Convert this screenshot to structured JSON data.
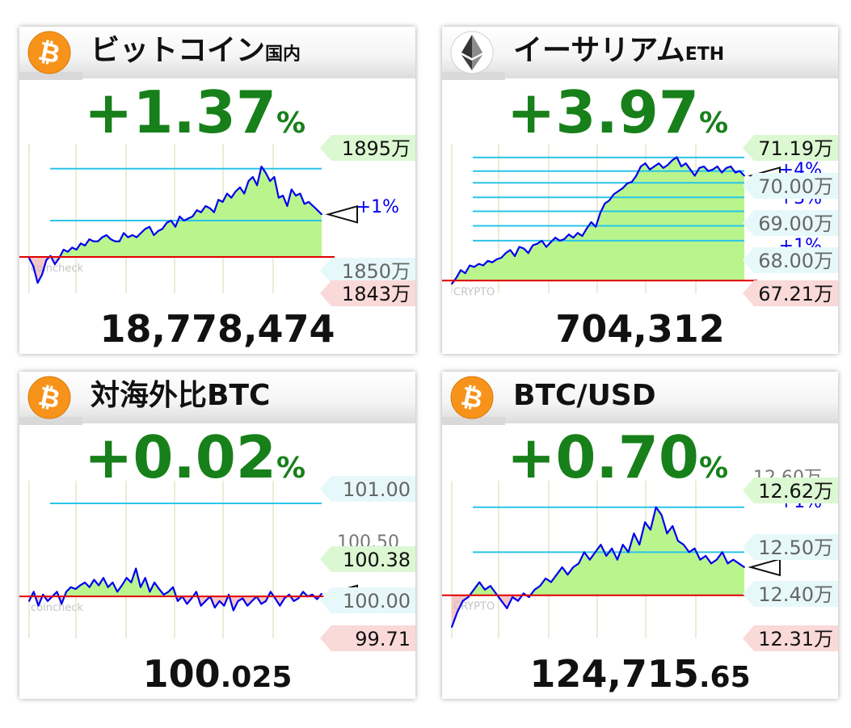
{
  "colors": {
    "up": "#17801a",
    "line": "#0000ee",
    "fill_above": "#b9f58c",
    "fill_below": "#f7c6c6",
    "hline": "#29c5e8",
    "baseline": "#e00000",
    "label_green": "#dcf8d2",
    "label_pink": "#fad9d9",
    "label_blue": "#e6f8fa"
  },
  "panels": [
    {
      "title": "ビットコイン",
      "title_suffix": "国内",
      "icon": "bitcoin-icon",
      "change": "+1.37",
      "unit": "%",
      "price_main": "18,778,474",
      "price_decimal": "",
      "watermark": "coincheck",
      "labels": {
        "high": "1895万",
        "low": "1843万",
        "levels": [
          "1850万"
        ],
        "partial": [
          "+1%"
        ]
      }
    },
    {
      "title": "イーサリアム",
      "title_suffix": "ETH",
      "icon": "ethereum-icon",
      "change": "+3.97",
      "unit": "%",
      "price_main": "704,312",
      "price_decimal": "",
      "watermark": "CRYPTO",
      "labels": {
        "high": "71.19万",
        "low": "67.21万",
        "levels": [
          "70.00万",
          "69.00万",
          "68.00万"
        ],
        "partial": [
          "+4%",
          "+3%",
          "+1%"
        ]
      }
    },
    {
      "title": "対海外比BTC",
      "title_suffix": "",
      "icon": "bitcoin-icon",
      "change": "+0.02",
      "unit": "%",
      "price_main": "100",
      "price_decimal": ".025",
      "watermark": "coincheck",
      "labels": {
        "high": "100.38",
        "low": "99.71",
        "levels": [
          "101.00",
          "100.00"
        ],
        "partial": [
          "100.50"
        ]
      }
    },
    {
      "title": "BTC/USD",
      "title_suffix": "",
      "icon": "bitcoin-icon",
      "change": "+0.70",
      "unit": "%",
      "price_main": "124,715",
      "price_decimal": ".65",
      "watermark": "CRYPTO",
      "labels": {
        "high": "12.62万",
        "low": "12.31万",
        "levels": [
          "12.50万",
          "12.40万"
        ],
        "partial": [
          "12.60万",
          "+1%"
        ]
      }
    }
  ],
  "chart_data": [
    {
      "type": "line",
      "title": "ビットコイン国内",
      "ylim": [
        1835,
        1905
      ],
      "baseline": 1852.5,
      "hlines": [
        1895,
        1870
      ],
      "y": [
        1852,
        1848,
        1840,
        1844,
        1851,
        1853,
        1849,
        1852,
        1856,
        1855,
        1857,
        1856,
        1859,
        1858,
        1861,
        1860,
        1860,
        1862,
        1863,
        1861,
        1860,
        1860,
        1864,
        1862,
        1863,
        1862,
        1864,
        1866,
        1867,
        1863,
        1865,
        1866,
        1869,
        1870,
        1867,
        1872,
        1870,
        1871,
        1872,
        1875,
        1874,
        1877,
        1876,
        1874,
        1880,
        1879,
        1883,
        1881,
        1884,
        1886,
        1883,
        1889,
        1891,
        1887,
        1896,
        1893,
        1889,
        1891,
        1881,
        1882,
        1877,
        1885,
        1882,
        1883,
        1878,
        1879,
        1877,
        1875,
        1873
      ]
    },
    {
      "type": "line",
      "title": "イーサリアムETH",
      "ylim": [
        66.8,
        71.5
      ],
      "baseline": 67.21,
      "hlines": [
        71.19,
        70.75,
        70.37,
        69.9,
        69.45,
        68.98,
        68.5
      ],
      "y": [
        67.1,
        67.3,
        67.55,
        67.45,
        67.7,
        67.65,
        67.75,
        67.7,
        67.85,
        67.8,
        67.9,
        67.95,
        68.1,
        68.2,
        68.0,
        68.3,
        68.25,
        68.1,
        68.35,
        68.4,
        68.5,
        68.3,
        68.45,
        68.6,
        68.5,
        68.55,
        68.7,
        68.6,
        68.75,
        68.65,
        68.9,
        69.1,
        68.95,
        69.4,
        69.7,
        69.8,
        70.0,
        70.1,
        70.2,
        70.35,
        70.4,
        70.6,
        70.9,
        71.0,
        70.8,
        70.9,
        71.0,
        70.85,
        70.95,
        71.1,
        71.2,
        70.9,
        71.0,
        70.8,
        70.6,
        70.85,
        70.9,
        70.75,
        70.8,
        70.9,
        70.7,
        70.85,
        70.9,
        70.7,
        70.75,
        70.6
      ]
    },
    {
      "type": "line",
      "title": "対海外比BTC",
      "ylim": [
        99.55,
        101.2
      ],
      "baseline": 100.0,
      "hlines": [
        101.0
      ],
      "y": [
        99.95,
        100.05,
        99.9,
        100.02,
        99.95,
        100.0,
        100.05,
        99.92,
        100.05,
        100.1,
        100.08,
        100.12,
        100.15,
        100.1,
        100.18,
        100.12,
        100.2,
        100.1,
        100.15,
        100.05,
        100.12,
        100.2,
        100.15,
        100.3,
        100.1,
        100.2,
        100.05,
        100.15,
        100.08,
        100.02,
        100.05,
        100.1,
        99.95,
        100.0,
        99.92,
        99.98,
        100.05,
        99.9,
        99.95,
        100.0,
        99.88,
        99.95,
        99.9,
        100.02,
        99.85,
        99.95,
        99.98,
        99.9,
        99.95,
        100.0,
        99.92,
        99.95,
        100.05,
        99.98,
        99.9,
        99.98,
        100.02,
        99.95,
        99.98,
        100.05,
        100.0,
        100.02,
        99.97,
        100.03
      ]
    },
    {
      "type": "line",
      "title": "BTC/USD",
      "ylim": [
        12.27,
        12.68
      ],
      "baseline": 12.385,
      "hlines": [
        12.62,
        12.5
      ],
      "y": [
        12.3,
        12.34,
        12.37,
        12.38,
        12.4,
        12.42,
        12.4,
        12.41,
        12.39,
        12.37,
        12.35,
        12.38,
        12.37,
        12.39,
        12.38,
        12.4,
        12.41,
        12.43,
        12.42,
        12.44,
        12.46,
        12.44,
        12.46,
        12.47,
        12.5,
        12.48,
        12.5,
        12.52,
        12.49,
        12.51,
        12.48,
        12.52,
        12.5,
        12.55,
        12.52,
        12.58,
        12.56,
        12.62,
        12.6,
        12.55,
        12.57,
        12.53,
        12.52,
        12.5,
        12.51,
        12.48,
        12.49,
        12.47,
        12.48,
        12.5,
        12.47,
        12.48,
        12.47,
        12.46
      ]
    }
  ]
}
